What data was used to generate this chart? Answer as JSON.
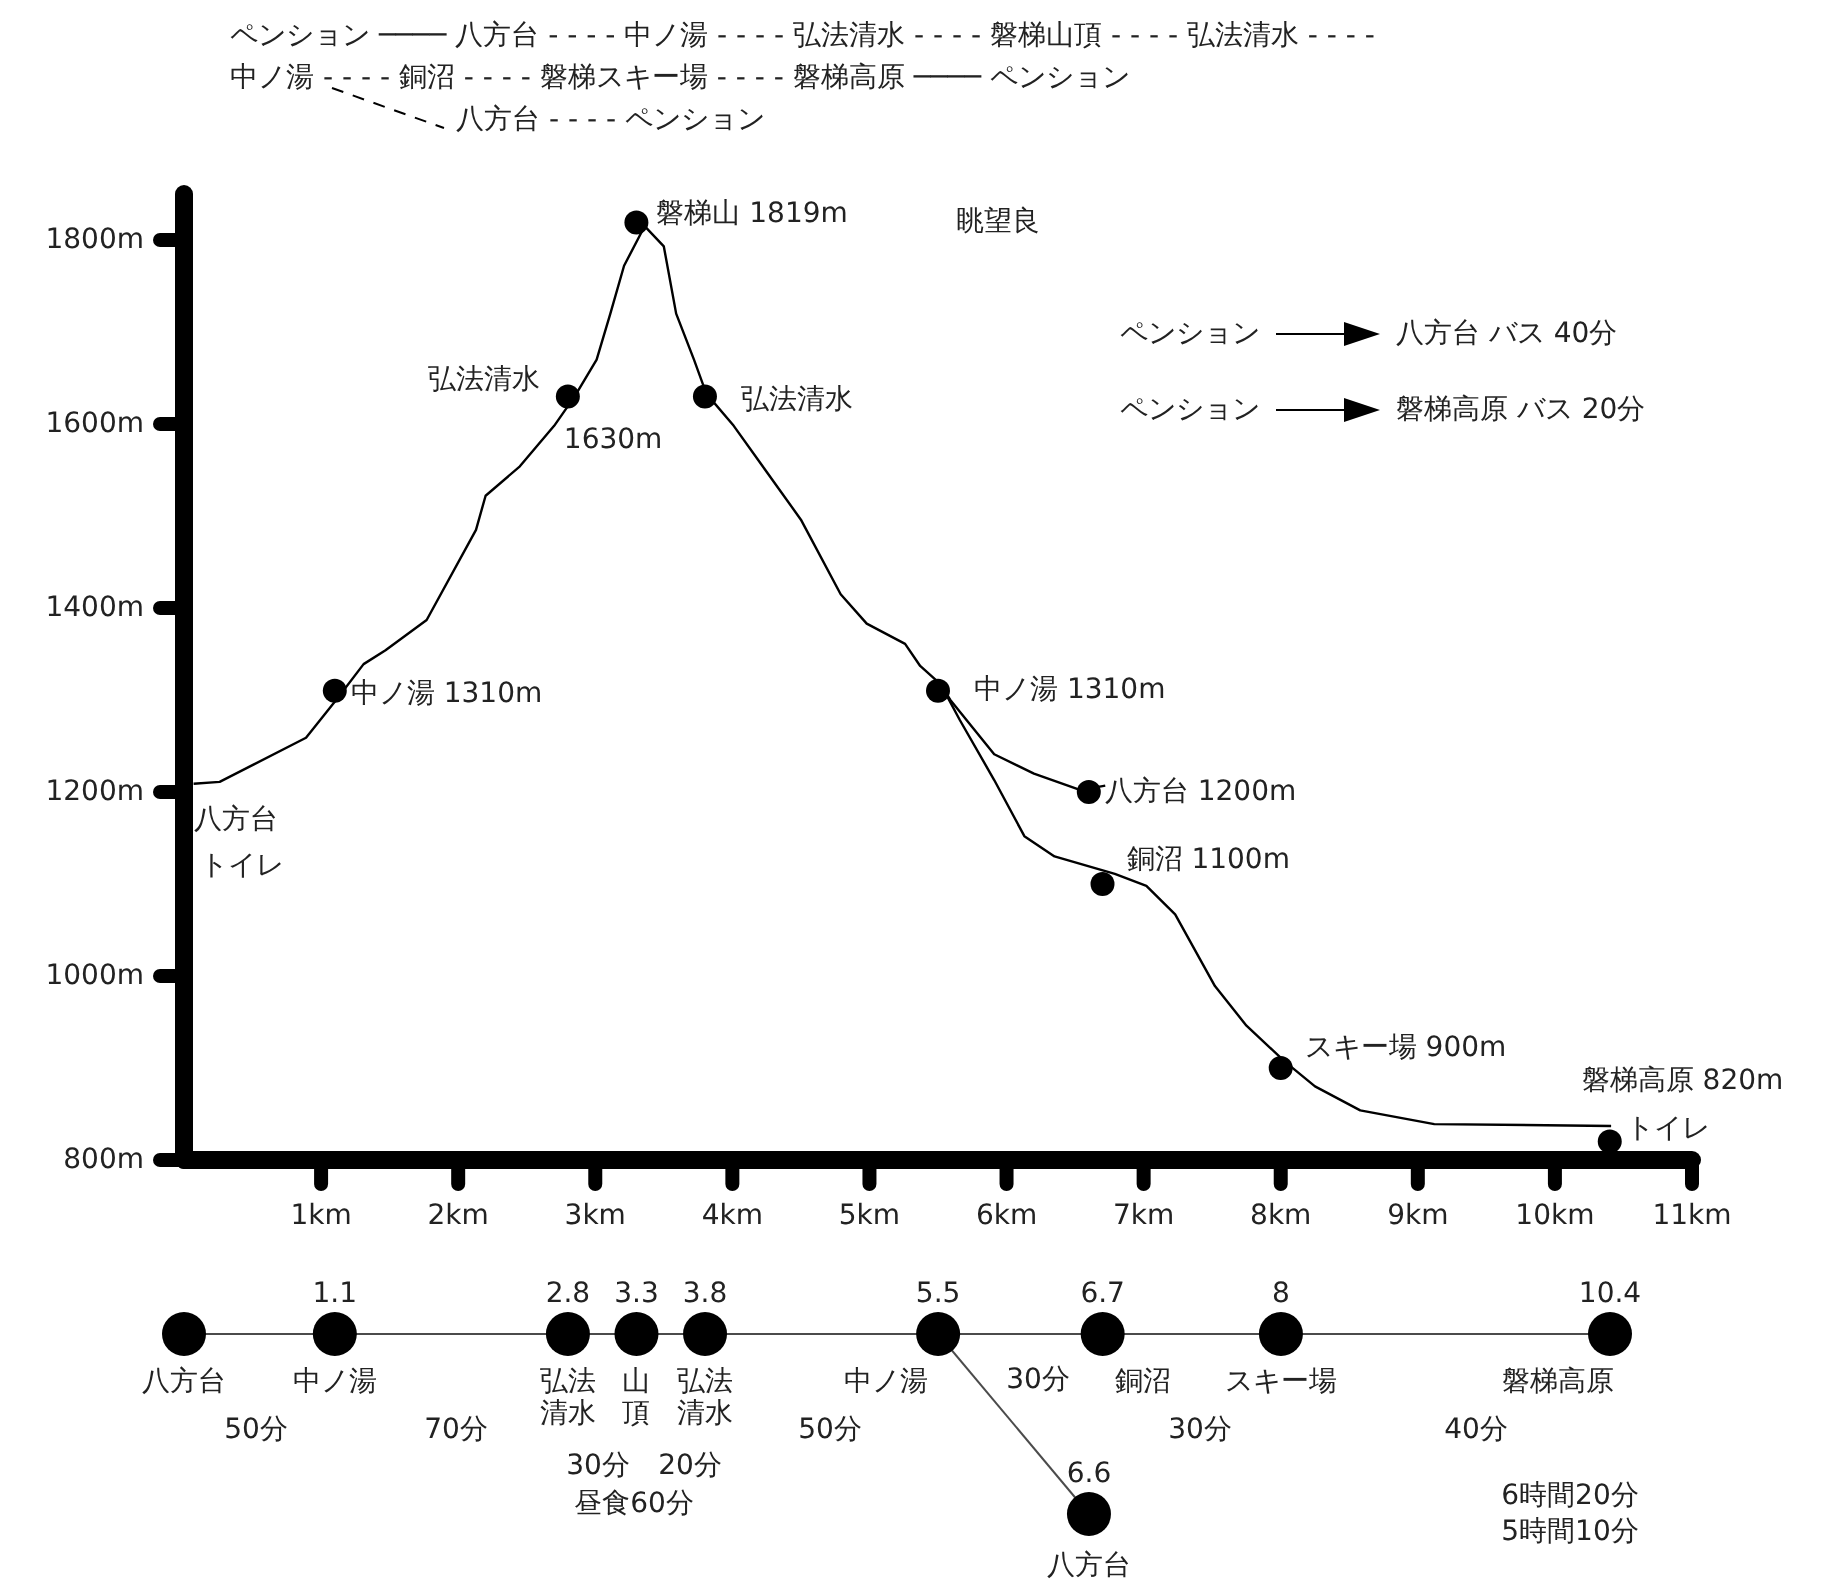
{
  "chart_data": [
    {
      "type": "line",
      "xlim": [
        0,
        11
      ],
      "ylim": [
        800,
        1850
      ],
      "xticks": [
        {
          "value": 1,
          "label": "1km"
        },
        {
          "value": 2,
          "label": "2km"
        },
        {
          "value": 3,
          "label": "3km"
        },
        {
          "value": 4,
          "label": "4km"
        },
        {
          "value": 5,
          "label": "5km"
        },
        {
          "value": 6,
          "label": "6km"
        },
        {
          "value": 7,
          "label": "7km"
        },
        {
          "value": 8,
          "label": "8km"
        },
        {
          "value": 9,
          "label": "9km"
        },
        {
          "value": 10,
          "label": "10km"
        },
        {
          "value": 11,
          "label": "11km"
        }
      ],
      "yticks": [
        {
          "value": 800,
          "label": "800m"
        },
        {
          "value": 1000,
          "label": "1000m"
        },
        {
          "value": 1200,
          "label": "1200m"
        },
        {
          "value": 1400,
          "label": "1400m"
        },
        {
          "value": 1600,
          "label": "1600m"
        },
        {
          "value": 1800,
          "label": "1800m"
        }
      ],
      "series": [
        {
          "color": "#000000",
          "x": [
            0.07,
            0.26,
            0.51,
            0.89,
            1.12,
            1.31,
            1.47,
            1.77,
            2.13,
            2.2,
            2.45,
            2.7,
            2.85,
            3.01,
            3.11,
            3.21,
            3.36,
            3.5,
            3.59,
            3.72,
            3.81,
            4.01,
            4.5,
            4.79,
            4.98,
            5.26,
            5.37,
            5.52,
            5.66,
            5.91,
            6.13,
            6.35,
            6.79,
            7.02,
            7.23,
            7.52,
            7.75,
            8.03,
            8.25,
            8.58,
            9.12,
            10.41
          ],
          "values": [
            1209,
            1211,
            1230,
            1259,
            1302,
            1339,
            1354,
            1387,
            1485,
            1522,
            1554,
            1598,
            1630,
            1670,
            1720,
            1772,
            1815,
            1793,
            1720,
            1670,
            1633,
            1598,
            1496,
            1415,
            1383,
            1361,
            1337,
            1317,
            1278,
            1213,
            1152,
            1130,
            1111,
            1098,
            1067,
            989,
            946,
            907,
            880,
            854,
            839,
            837
          ]
        },
        {
          "color": "#000000",
          "x": [
            5.52,
            5.59,
            5.91,
            6.2,
            6.54,
            6.72
          ],
          "values": [
            1317,
            1300,
            1241,
            1220,
            1202,
            1207
          ]
        },
        {
          "type": "scatter",
          "color": "#000000",
          "x": [
            1.1,
            2.8,
            3.3,
            3.8,
            5.5,
            6.6,
            6.7,
            8,
            10.4
          ],
          "values": [
            1310,
            1630,
            1819,
            1630,
            1310,
            1200,
            1100,
            900,
            820
          ]
        }
      ],
      "annotations": [
        {
          "text": "磐梯山 1819m",
          "x": 3.3,
          "y": 1819
        },
        {
          "text": "弘法清水",
          "x": 2.8,
          "y": 1630
        },
        {
          "text": "1630m",
          "x": 2.8,
          "y": 1630
        },
        {
          "text": "弘法清水",
          "x": 3.8,
          "y": 1630
        },
        {
          "text": "中ノ湯 1310m",
          "x": 1.1,
          "y": 1310
        },
        {
          "text": "中ノ湯 1310m",
          "x": 5.5,
          "y": 1310
        },
        {
          "text": "八方台 1200m",
          "x": 6.6,
          "y": 1200
        },
        {
          "text": "銅沼 1100m",
          "x": 6.7,
          "y": 1100
        },
        {
          "text": "スキー場 900m",
          "x": 8,
          "y": 900
        },
        {
          "text": "磐梯高原 820m",
          "x": 10.4,
          "y": 820
        },
        {
          "text": "トイレ",
          "x": 10.4,
          "y": 820
        },
        "八方台",
        "トイレ",
        "眺望良",
        "ペンション",
        "八方台 バス 40分",
        "ペンション",
        "磐梯高原 バス 20分",
        "ペンション ──── 八方台 - - - - 中ノ湯 - - - - 弘法清水 - - - - 磐梯山頂 - - - - 弘法清水 - - - -",
        "中ノ湯 - - - - 銅沼    - - - -    磐梯スキー場 - - - - 磐梯高原 ──── ペンション",
        "八方台 - - - - ペンション"
      ]
    },
    {
      "type": "other",
      "data_labels": true,
      "color": "#000000",
      "categories": [
        "八方台",
        "中ノ湯",
        "弘法清水",
        "山頂",
        "弘法清水",
        "中ノ湯",
        "銅沼",
        "スキー場",
        "磐梯高原",
        "八方台"
      ],
      "values": [
        null,
        1.1,
        2.8,
        3.3,
        3.8,
        5.5,
        6.7,
        8,
        10.4,
        6.6
      ],
      "annotations": [
        "50分",
        "70分",
        "30分",
        "20分",
        "昼食60分",
        "50分",
        "30分",
        "30分",
        "40分",
        "6時間20分",
        "5時間10分"
      ]
    }
  ]
}
